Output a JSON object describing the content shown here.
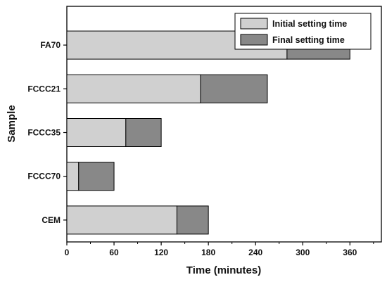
{
  "chart_data": {
    "type": "bar",
    "orientation": "horizontal",
    "stacked": true,
    "categories": [
      "FA70",
      "FCCC21",
      "FCCC35",
      "FCCC70",
      "CEM"
    ],
    "series": [
      {
        "name": "Initial setting time",
        "values": [
          280,
          170,
          75,
          15,
          140
        ],
        "color": "#d0d0d0"
      },
      {
        "name": "Final setting time",
        "values": [
          80,
          85,
          45,
          45,
          40
        ],
        "color": "#888888"
      }
    ],
    "totals": [
      360,
      255,
      120,
      60,
      180
    ],
    "xlabel": "Time (minutes)",
    "ylabel": "Sample",
    "xlim": [
      0,
      400
    ],
    "xticks": [
      0,
      60,
      120,
      180,
      240,
      300,
      360
    ],
    "grid": false,
    "legend_position": "top-right"
  }
}
